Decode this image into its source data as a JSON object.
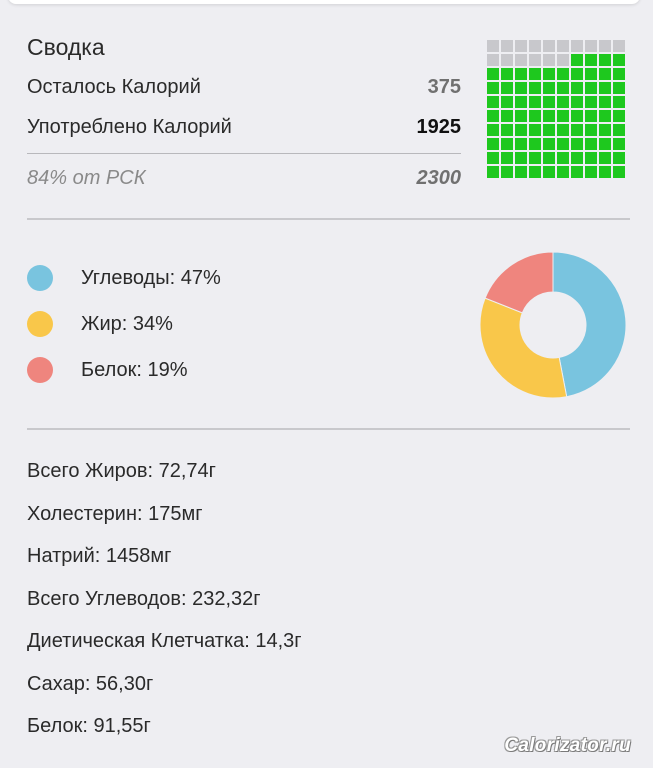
{
  "summary": {
    "title": "Сводка",
    "remaining_label": "Осталось Калорий",
    "remaining_value": "375",
    "consumed_label": "Употреблено Калорий",
    "consumed_value": "1925",
    "rsk_label": "84% от РСК",
    "rsk_value": "2300"
  },
  "calorie_grid": {
    "filled_fraction": 0.84,
    "filled_color": "#1ec81e",
    "empty_color": "#c8c8cc"
  },
  "macros": [
    {
      "label": "Углеводы: 47%",
      "percent": 47,
      "color": "#79c4df"
    },
    {
      "label": "Жир: 34%",
      "percent": 34,
      "color": "#f9c74a"
    },
    {
      "label": "Белок: 19%",
      "percent": 19,
      "color": "#ef857e"
    }
  ],
  "nutrients": [
    "Всего Жиров: 72,74г",
    "Холестерин: 175мг",
    "Натрий: 1458мг",
    "Всего Углеводов: 232,32г",
    "Диетическая Клетчатка: 14,3г",
    "Сахар: 56,30г",
    "Белок: 91,55г"
  ],
  "watermark": "Calorizator.ru"
}
